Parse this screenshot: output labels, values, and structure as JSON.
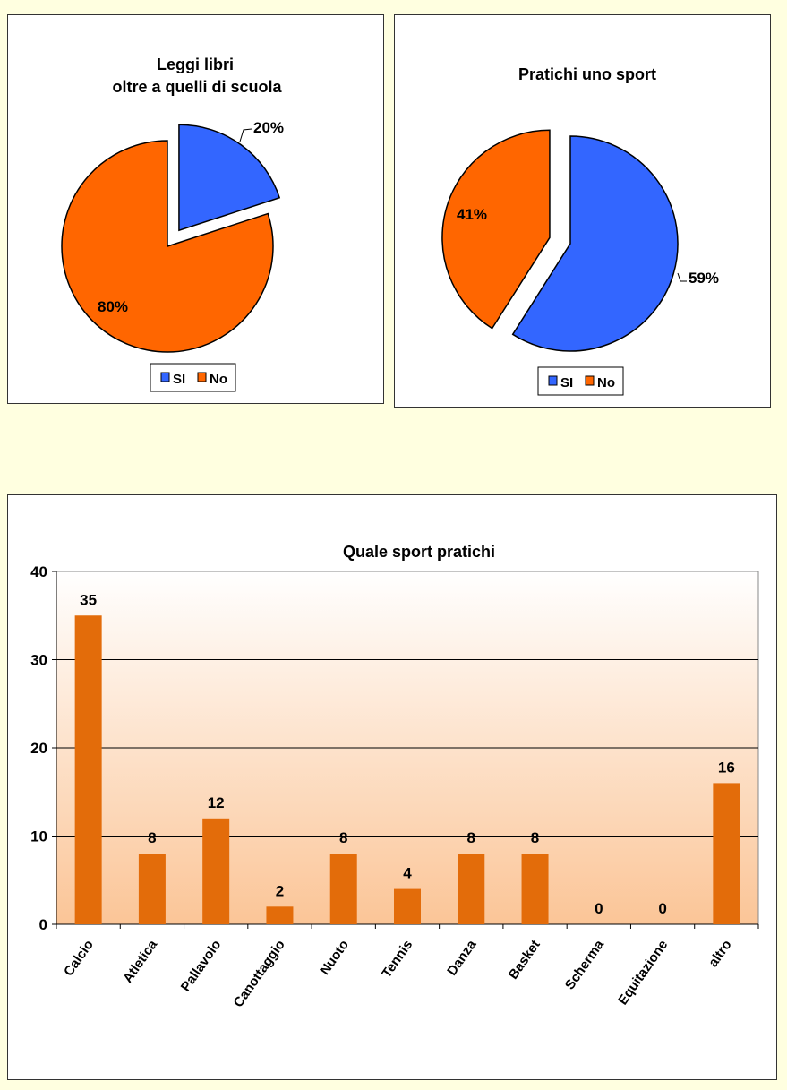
{
  "chart_data": [
    {
      "type": "pie",
      "title_lines": [
        "Leggi libri",
        "oltre a quelli  di scuola"
      ],
      "labels": [
        "SI",
        "No"
      ],
      "values": [
        20,
        80
      ],
      "value_labels": [
        "20%",
        "80%"
      ],
      "exploded": "SI",
      "colors": [
        "#3366ff",
        "#ff6600"
      ],
      "legend": "bottom"
    },
    {
      "type": "pie",
      "title_lines": [
        "Pratichi  uno sport"
      ],
      "labels": [
        "SI",
        "No"
      ],
      "values": [
        59,
        41
      ],
      "value_labels": [
        "59%",
        "41%"
      ],
      "exploded": "No",
      "colors": [
        "#3366ff",
        "#ff6600"
      ],
      "legend": "bottom"
    },
    {
      "type": "bar",
      "title": "Quale sport pratichi",
      "categories": [
        "Calcio",
        "Atletica",
        "Pallavolo",
        "Canottaggio",
        "Nuoto",
        "Tennis",
        "Danza",
        "Basket",
        "Scherma",
        "Equitazione",
        "altro"
      ],
      "values": [
        35,
        8,
        12,
        2,
        8,
        4,
        8,
        8,
        0,
        0,
        16
      ],
      "ylim": [
        0,
        40
      ],
      "yticks": [
        "0",
        "10",
        "20",
        "30",
        "40"
      ],
      "xlabel": "",
      "ylabel": "",
      "grid": true,
      "bar_color": "#e36c0a"
    }
  ]
}
